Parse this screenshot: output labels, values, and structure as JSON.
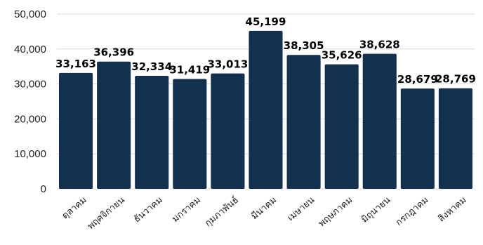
{
  "chart_data": {
    "type": "bar",
    "categories": [
      "ตุลาคม",
      "พฤศจิกายน",
      "ธันวาคม",
      "มกราคม",
      "กุมภาพันธ์",
      "มีนาคม",
      "เมษายน",
      "พฤษภาคม",
      "มิถุนายน",
      "กรกฎาคม",
      "สิงหาคม"
    ],
    "values": [
      33163,
      36396,
      32334,
      31419,
      33013,
      45199,
      38305,
      35626,
      38628,
      28679,
      28769
    ],
    "data_labels": [
      "33,163",
      "36,396",
      "32,334",
      "31,419",
      "33,013",
      "45,199",
      "38,305",
      "35,626",
      "38,628",
      "28,679",
      "28,769"
    ],
    "y_ticks": [
      0,
      10000,
      20000,
      30000,
      40000,
      50000
    ],
    "y_tick_labels": [
      "0",
      "10,000",
      "20,000",
      "30,000",
      "40,000",
      "50,000"
    ],
    "ylim": [
      0,
      50000
    ],
    "grid": true,
    "legend": "none",
    "colors": {
      "bar": "#13314f",
      "grid": "#d9d9d9"
    }
  }
}
